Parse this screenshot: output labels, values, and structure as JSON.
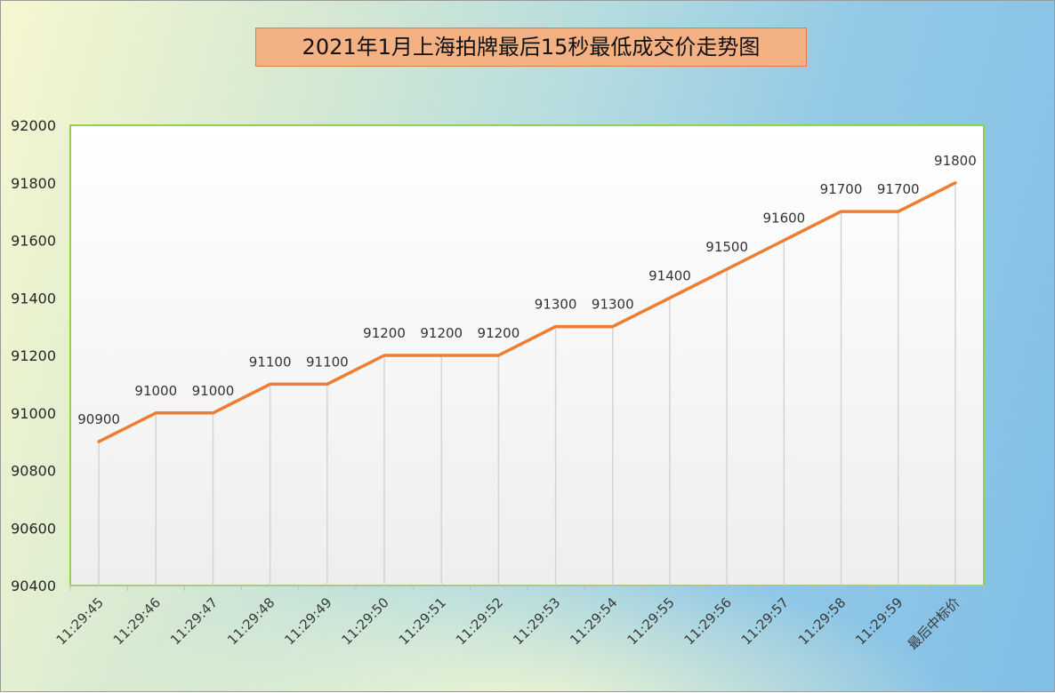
{
  "chart_data": {
    "type": "line",
    "title": "2021年1月上海拍牌最后15秒最低成交价走势图",
    "categories": [
      "11:29:45",
      "11:29:46",
      "11:29:47",
      "11:29:48",
      "11:29:49",
      "11:29:50",
      "11:29:51",
      "11:29:52",
      "11:29:53",
      "11:29:54",
      "11:29:55",
      "11:29:56",
      "11:29:57",
      "11:29:58",
      "11:29:59",
      "最后中标价"
    ],
    "series": [
      {
        "values": [
          90900,
          91000,
          91000,
          91100,
          91100,
          91200,
          91200,
          91200,
          91300,
          91300,
          91400,
          91500,
          91600,
          91700,
          91700,
          91800
        ]
      }
    ],
    "ylim": [
      90400,
      92000
    ],
    "yticks": [
      90400,
      90600,
      90800,
      91000,
      91200,
      91400,
      91600,
      91800,
      92000
    ],
    "data_labels": true,
    "drop_lines": true,
    "grid": false,
    "legend": "none",
    "colors": {
      "line": "#ed7d31",
      "plot_border": "#92d050",
      "title_bg": "#f4b183",
      "title_border": "#e07b45"
    }
  }
}
